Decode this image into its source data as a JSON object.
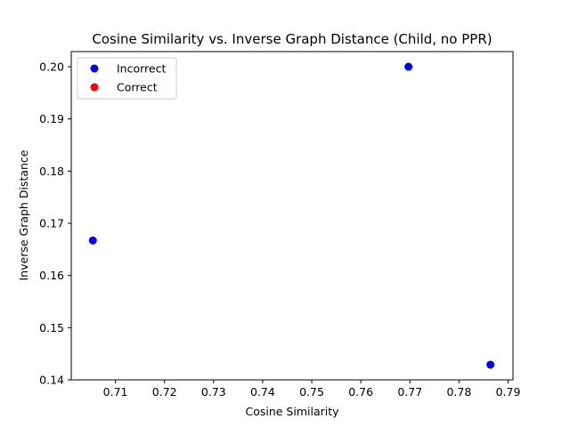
{
  "chart_data": {
    "type": "scatter",
    "title": "Cosine Similarity vs. Inverse Graph Distance (Child, no PPR)",
    "xlabel": "Cosine Similarity",
    "ylabel": "Inverse Graph Distance",
    "xlim": [
      0.701,
      0.791
    ],
    "ylim": [
      0.14,
      0.2029
    ],
    "xticks": [
      "0.71",
      "0.72",
      "0.73",
      "0.74",
      "0.75",
      "0.76",
      "0.77",
      "0.78",
      "0.79"
    ],
    "yticks": [
      "0.14",
      "0.15",
      "0.16",
      "0.17",
      "0.18",
      "0.19",
      "0.20"
    ],
    "grid": false,
    "legend_position": "top-left",
    "series": [
      {
        "name": "Incorrect",
        "color": "#0000ff",
        "points": [
          {
            "x": 0.7054,
            "y": 0.1667
          },
          {
            "x": 0.7697,
            "y": 0.2
          },
          {
            "x": 0.7864,
            "y": 0.1429
          }
        ]
      },
      {
        "name": "Correct",
        "color": "#ff0000",
        "points": []
      }
    ]
  }
}
